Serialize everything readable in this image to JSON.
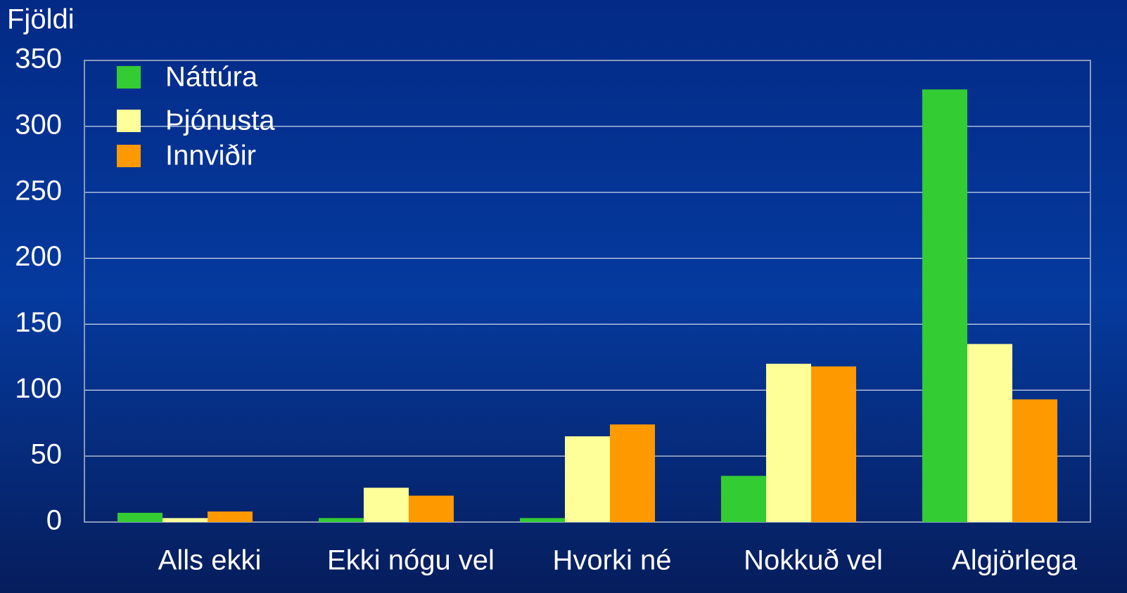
{
  "chart_data": {
    "type": "bar",
    "y_label": "Fjöldi",
    "categories": [
      "Alls ekki",
      "Ekki nógu vel",
      "Hvorki né",
      "Nokkuð vel",
      "Algjörlega"
    ],
    "series": [
      {
        "name": "Náttúra",
        "color": "#33cc33",
        "values": [
          7,
          3,
          3,
          35,
          328
        ]
      },
      {
        "name": "Þjónusta",
        "color": "#ffff99",
        "values": [
          3,
          26,
          65,
          120,
          135
        ]
      },
      {
        "name": "Innviðir",
        "color": "#ff9900",
        "values": [
          8,
          20,
          74,
          118,
          93
        ]
      }
    ],
    "ylim": [
      0,
      350
    ],
    "yticks": [
      0,
      50,
      100,
      150,
      200,
      250,
      300,
      350
    ],
    "grid": true,
    "legend": "top-left"
  }
}
